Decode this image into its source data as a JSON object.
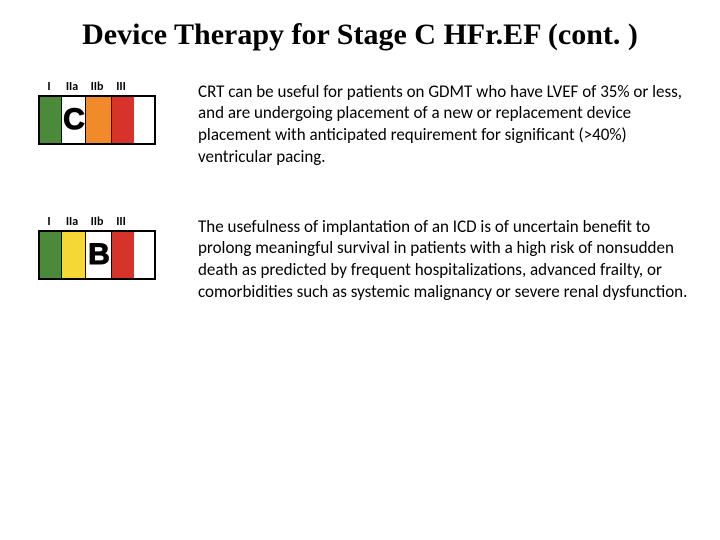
{
  "title": "Device Therapy for Stage C HFr.EF (cont. )",
  "headers": [
    "I",
    "IIa",
    "IIb",
    "III"
  ],
  "colors": {
    "I": "#4a8a3a",
    "IIa": "#f5d836",
    "IIb": "#f08a2a",
    "III": "#d6332a"
  },
  "rows": [
    {
      "letterCol": 1,
      "letter": "C",
      "text": "CRT can be useful for patients on GDMT who have LVEF of 35% or less, and are undergoing placement of a new or replacement device placement with anticipated requirement for significant (>40%) ventricular pacing."
    },
    {
      "letterCol": 2,
      "letter": "B",
      "text": "The usefulness of implantation of an ICD is of uncertain benefit to prolong meaningful survival in patients with a high risk of nonsudden death as predicted by frequent hospitalizations, advanced frailty, or comorbidities such as systemic malignancy or severe renal dysfunction."
    }
  ]
}
